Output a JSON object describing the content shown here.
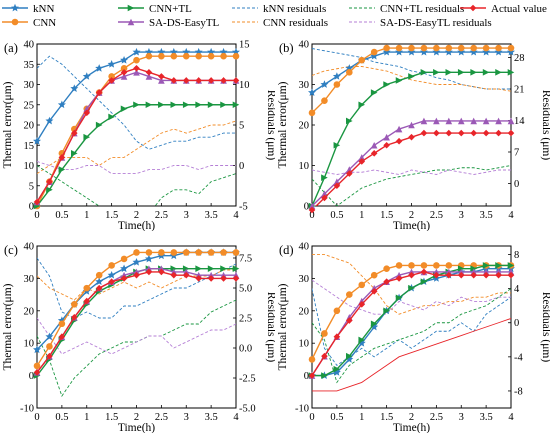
{
  "colors": {
    "knn": "#2f7fc1",
    "cnn": "#f28c28",
    "cnn_tl": "#1a9641",
    "sa_ds": "#9b59b6",
    "actual": "#e8252a",
    "knn_res": "#2f7fc1",
    "cnn_res": "#f28c28",
    "cnn_tl_res": "#1a9641",
    "sa_ds_res": "#b57fd6"
  },
  "legend": {
    "knn": "kNN",
    "cnn": "CNN",
    "cnn_tl": "CNN+TL",
    "sa_ds": "SA-DS-EasyTL",
    "knn_res": "kNN residuals",
    "cnn_res": "CNN residuals",
    "cnn_tl_res": "CNN+TL residuals",
    "sa_ds_res": "SA-DS-EasyTL residuals",
    "actual": "Actual value"
  },
  "chart_data": [
    {
      "type": "line",
      "panel_label": "(a)",
      "xlabel": "Time(h)",
      "ylabel": "Thermal error(μm)",
      "y2label": "Residuals (μm)",
      "xlim": [
        0,
        4
      ],
      "ylim": [
        0,
        40
      ],
      "y2lim": [
        -5,
        15
      ],
      "xticks": [
        0,
        0.5,
        1,
        1.5,
        2,
        2.5,
        3,
        3.5,
        4
      ],
      "yticks": [
        0,
        5,
        10,
        15,
        20,
        25,
        30,
        35,
        40
      ],
      "y2ticks": [
        -5,
        0,
        5,
        10,
        15
      ],
      "x": [
        0,
        0.25,
        0.5,
        0.75,
        1,
        1.25,
        1.5,
        1.75,
        2,
        2.25,
        2.5,
        2.75,
        3,
        3.25,
        3.5,
        3.75,
        4
      ],
      "series": [
        {
          "key": "knn",
          "name": "kNN",
          "marker": "star",
          "values": [
            16,
            21,
            25,
            29,
            32,
            34,
            35,
            36,
            38,
            38,
            38,
            38,
            38,
            38,
            38,
            38,
            38
          ]
        },
        {
          "key": "cnn",
          "name": "CNN",
          "marker": "circle",
          "values": [
            0,
            6,
            13,
            19,
            24,
            28,
            32,
            34,
            36,
            37,
            37,
            37,
            37,
            37,
            37,
            37,
            37
          ]
        },
        {
          "key": "cnn_tl",
          "name": "CNN+TL",
          "marker": "triangle-right",
          "values": [
            0,
            4,
            9,
            13,
            17,
            20,
            22,
            24,
            25,
            25,
            25,
            25,
            25,
            25,
            25,
            25,
            25
          ]
        },
        {
          "key": "sa_ds",
          "name": "SA-DS-EasyTL",
          "marker": "triangle-up",
          "values": [
            1,
            6,
            12,
            18,
            24,
            28,
            31,
            32,
            33,
            32,
            31,
            31,
            31,
            31,
            31,
            31,
            31
          ]
        },
        {
          "key": "actual",
          "name": "Actual value",
          "marker": "diamond",
          "values": [
            1,
            6,
            12,
            18,
            23,
            28,
            31,
            33,
            34,
            33,
            32,
            31,
            31,
            31,
            31,
            31,
            31
          ]
        }
      ],
      "residual_series": [
        {
          "key": "knn_res",
          "name": "kNN residuals",
          "values": [
            12,
            13.5,
            12.5,
            11,
            9.5,
            8,
            6.5,
            5,
            3,
            2,
            2.5,
            3,
            3,
            3.5,
            3.5,
            4,
            4
          ]
        },
        {
          "key": "cnn_res",
          "name": "CNN residuals",
          "values": [
            -1,
            0,
            1,
            1,
            1,
            0,
            1,
            1,
            2,
            3,
            4,
            4.5,
            4,
            4.5,
            5,
            5,
            5.5
          ]
        },
        {
          "key": "cnn_tl_res",
          "name": "CNN+TL residuals",
          "values": [
            0,
            -1,
            -2,
            -3,
            -4,
            -5,
            -6,
            -7,
            -8,
            -6,
            -4,
            -3,
            -3,
            -3.5,
            -2,
            -1.5,
            -1
          ]
        },
        {
          "key": "sa_ds_res",
          "name": "SA-DS-EasyTL residuals",
          "values": [
            0.5,
            0,
            -0.5,
            -0.5,
            0,
            0,
            -1,
            -1,
            -1,
            -0.5,
            -0.5,
            0,
            0,
            -0.5,
            0,
            0,
            0
          ]
        }
      ]
    },
    {
      "type": "line",
      "panel_label": "(b)",
      "xlabel": "Time(h)",
      "ylabel": "Thermal error(μm)",
      "y2label": "Residuals (μm)",
      "xlim": [
        0,
        4
      ],
      "ylim": [
        0,
        40
      ],
      "y2lim": [
        -5,
        31
      ],
      "xticks": [
        0,
        0.5,
        1,
        1.5,
        2,
        2.5,
        3,
        3.5,
        4
      ],
      "yticks": [
        0,
        10,
        20,
        30,
        40
      ],
      "y2ticks": [
        0,
        7,
        14,
        21,
        28
      ],
      "x": [
        0,
        0.25,
        0.5,
        0.75,
        1,
        1.25,
        1.5,
        1.75,
        2,
        2.25,
        2.5,
        2.75,
        3,
        3.25,
        3.5,
        3.75,
        4
      ],
      "series": [
        {
          "key": "knn",
          "name": "kNN",
          "marker": "star",
          "values": [
            28,
            30,
            32,
            34,
            36,
            37,
            38,
            38,
            38,
            38,
            38,
            38,
            38,
            38,
            38,
            38,
            38
          ]
        },
        {
          "key": "cnn",
          "name": "CNN",
          "marker": "circle",
          "values": [
            23,
            26,
            30,
            33,
            36,
            38,
            39,
            39,
            39,
            39,
            39,
            39,
            39,
            39,
            39,
            39,
            39
          ]
        },
        {
          "key": "cnn_tl",
          "name": "CNN+TL",
          "marker": "triangle-right",
          "values": [
            0,
            7,
            15,
            21,
            25,
            28,
            30,
            31,
            32,
            33,
            33,
            33,
            33,
            33,
            33,
            33,
            33
          ]
        },
        {
          "key": "sa_ds",
          "name": "SA-DS-EasyTL",
          "marker": "triangle-up",
          "values": [
            0,
            3,
            6,
            9,
            12,
            15,
            17,
            19,
            20,
            21,
            21,
            21,
            21,
            21,
            21,
            21,
            21
          ]
        },
        {
          "key": "actual",
          "name": "Actual value",
          "marker": "diamond",
          "values": [
            -1,
            2,
            5,
            8,
            11,
            13,
            15,
            16,
            17,
            18,
            18,
            18,
            18,
            18,
            18,
            18,
            18
          ]
        }
      ],
      "residual_series": [
        {
          "key": "knn_res",
          "name": "kNN residuals",
          "values": [
            30,
            29.5,
            29,
            28.5,
            28,
            27,
            26.5,
            26,
            25,
            24.5,
            23.5,
            23,
            22,
            21.5,
            21,
            21,
            21
          ]
        },
        {
          "key": "cnn_res",
          "name": "CNN residuals",
          "values": [
            24,
            25,
            25.5,
            26,
            26,
            25.5,
            25,
            24,
            23,
            22.5,
            22,
            22,
            22,
            21.5,
            21,
            21,
            20.5
          ]
        },
        {
          "key": "cnn_tl_res",
          "name": "CNN+TL residuals",
          "values": [
            1,
            -2,
            -5,
            -3,
            -1,
            0,
            1,
            1.5,
            2,
            2.5,
            3,
            3,
            3.5,
            3.5,
            3,
            3.5,
            4
          ]
        },
        {
          "key": "sa_ds_res",
          "name": "SA-DS-EasyTL residuals",
          "values": [
            3,
            2.5,
            2,
            2.5,
            2.5,
            3,
            2.5,
            2,
            3,
            2.5,
            2,
            3,
            2.5,
            2,
            2.5,
            3,
            3
          ]
        }
      ]
    },
    {
      "type": "line",
      "panel_label": "(c)",
      "xlabel": "Time(h)",
      "ylabel": "Thermal error(μm)",
      "y2label": "Residuals (μm)",
      "xlim": [
        0,
        4
      ],
      "ylim": [
        -10,
        40
      ],
      "y2lim": [
        -5,
        8.5
      ],
      "xticks": [
        0,
        0.5,
        1,
        1.5,
        2,
        2.5,
        3,
        3.5,
        4
      ],
      "yticks": [
        -10,
        0,
        10,
        20,
        30,
        40
      ],
      "y2ticks": [
        -5.0,
        -2.5,
        0.0,
        2.5,
        5.0,
        7.5
      ],
      "x": [
        0,
        0.25,
        0.5,
        0.75,
        1,
        1.25,
        1.5,
        1.75,
        2,
        2.25,
        2.5,
        2.75,
        3,
        3.25,
        3.5,
        3.75,
        4
      ],
      "series": [
        {
          "key": "knn",
          "name": "kNN",
          "marker": "star",
          "values": [
            8,
            12,
            17,
            22,
            26,
            29,
            31,
            33,
            35,
            36,
            37,
            37,
            38,
            38,
            38,
            38,
            38
          ]
        },
        {
          "key": "cnn",
          "name": "CNN",
          "marker": "circle",
          "values": [
            3,
            9,
            16,
            22,
            27,
            31,
            34,
            36,
            38,
            38,
            38,
            38,
            38,
            38,
            38,
            38,
            38
          ]
        },
        {
          "key": "cnn_tl",
          "name": "CNN+TL",
          "marker": "triangle-right",
          "values": [
            0,
            5,
            11,
            17,
            22,
            26,
            28,
            30,
            32,
            33,
            33,
            33,
            33,
            33,
            33,
            33,
            33
          ]
        },
        {
          "key": "sa_ds",
          "name": "SA-DS-EasyTL",
          "marker": "triangle-up",
          "values": [
            1,
            6,
            12,
            18,
            23,
            27,
            29,
            31,
            32,
            33,
            33,
            32,
            32,
            31,
            31,
            31,
            31
          ]
        },
        {
          "key": "actual",
          "name": "Actual value",
          "marker": "diamond",
          "values": [
            1,
            6,
            12,
            18,
            23,
            27,
            29,
            30,
            31,
            32,
            32,
            31,
            31,
            30,
            30,
            30,
            30
          ]
        }
      ],
      "residual_series": [
        {
          "key": "knn_res",
          "name": "kNN residuals",
          "values": [
            7.5,
            6,
            3,
            2.5,
            3,
            2.5,
            2.5,
            3.5,
            3.5,
            4,
            4.5,
            5,
            5,
            5.5,
            6,
            6.5,
            7
          ]
        },
        {
          "key": "cnn_res",
          "name": "CNN residuals",
          "values": [
            6,
            5,
            4.5,
            4,
            5,
            4.5,
            5,
            5.5,
            5,
            5.5,
            5,
            5.5,
            6,
            6,
            6,
            6.5,
            6.5
          ]
        },
        {
          "key": "cnn_tl_res",
          "name": "CNN+TL residuals",
          "values": [
            1,
            -1,
            -4,
            -2.5,
            -1.5,
            -0.5,
            0,
            0.5,
            0.5,
            1,
            1,
            1.5,
            2,
            2,
            3,
            3.5,
            4
          ]
        },
        {
          "key": "sa_ds_res",
          "name": "SA-DS-EasyTL residuals",
          "values": [
            2.5,
            1,
            -0.5,
            0,
            0.5,
            0,
            -0.5,
            0,
            0.5,
            1,
            1,
            0,
            0.5,
            1,
            1.5,
            1.5,
            2
          ]
        }
      ]
    },
    {
      "type": "line",
      "panel_label": "(d)",
      "xlabel": "Time(h)",
      "ylabel": "Thermal error(μm)",
      "y2label": "Residuals (μm)",
      "xlim": [
        0,
        4
      ],
      "ylim": [
        -10,
        40
      ],
      "y2lim": [
        -10,
        9
      ],
      "xticks": [
        0,
        0.5,
        1,
        1.5,
        2,
        2.5,
        3,
        3.5,
        4
      ],
      "yticks": [
        -10,
        0,
        10,
        20,
        30,
        40
      ],
      "y2ticks": [
        -8,
        -4,
        0,
        4,
        8
      ],
      "x": [
        0,
        0.25,
        0.5,
        0.75,
        1,
        1.25,
        1.5,
        1.75,
        2,
        2.25,
        2.5,
        2.75,
        3,
        3.25,
        3.5,
        3.75,
        4
      ],
      "series": [
        {
          "key": "knn",
          "name": "kNN",
          "marker": "star",
          "values": [
            0,
            0,
            1,
            5,
            10,
            15,
            20,
            24,
            27,
            29,
            30,
            31,
            32,
            32,
            33,
            33,
            33
          ]
        },
        {
          "key": "cnn",
          "name": "CNN",
          "marker": "circle",
          "values": [
            5,
            13,
            20,
            25,
            28,
            31,
            33,
            34,
            34,
            34,
            34,
            34,
            34,
            34,
            34,
            34,
            34
          ]
        },
        {
          "key": "cnn_tl",
          "name": "CNN+TL",
          "marker": "triangle-right",
          "values": [
            0,
            0,
            2,
            6,
            11,
            16,
            20,
            24,
            27,
            29,
            31,
            32,
            33,
            33,
            34,
            34,
            34
          ]
        },
        {
          "key": "sa_ds",
          "name": "SA-DS-EasyTL",
          "marker": "triangle-up",
          "values": [
            0,
            6,
            12,
            18,
            23,
            27,
            29,
            31,
            32,
            32,
            32,
            32,
            32,
            32,
            32,
            32,
            32
          ]
        },
        {
          "key": "actual",
          "name": "Actual value",
          "marker": "diamond",
          "values": [
            0,
            6,
            12,
            17,
            22,
            26,
            29,
            30,
            31,
            32,
            31,
            31,
            31,
            31,
            31,
            31,
            31
          ]
        }
      ],
      "residual_series": [
        {
          "key": "knn_res",
          "name": "kNN residuals",
          "values": [
            4,
            -3,
            -5,
            -4,
            -3,
            -4,
            -3,
            -2,
            -3,
            -2,
            -1,
            -1,
            0,
            -1,
            1,
            2,
            3
          ]
        },
        {
          "key": "cnn_res",
          "name": "CNN residuals",
          "values": [
            8,
            8,
            7.5,
            7,
            5.5,
            4,
            2,
            1,
            1.5,
            2,
            2,
            2.5,
            2.5,
            3,
            3,
            3.5,
            3.5
          ]
        },
        {
          "key": "cnn_tl_res",
          "name": "CNN+TL residuals",
          "values": [
            0,
            -2,
            -7,
            -5,
            -4,
            -3,
            -2.5,
            -2,
            -1.5,
            -1,
            0,
            0,
            1,
            1.5,
            2,
            3,
            4
          ]
        },
        {
          "key": "sa_ds_res",
          "name": "SA-DS-EasyTL residuals",
          "values": [
            5,
            4,
            3,
            2,
            1.5,
            1,
            1,
            2.5,
            2,
            1.5,
            2.5,
            2,
            3,
            2.5,
            2.5,
            3,
            3
          ]
        },
        {
          "key": "actual_res",
          "name": "",
          "values": [
            -8,
            -8,
            -8,
            -7.5,
            -7,
            -6,
            -5,
            -4,
            -3.5,
            -3,
            -2.5,
            -2,
            -1.5,
            -1,
            -0.5,
            0,
            0.5
          ]
        }
      ]
    }
  ]
}
